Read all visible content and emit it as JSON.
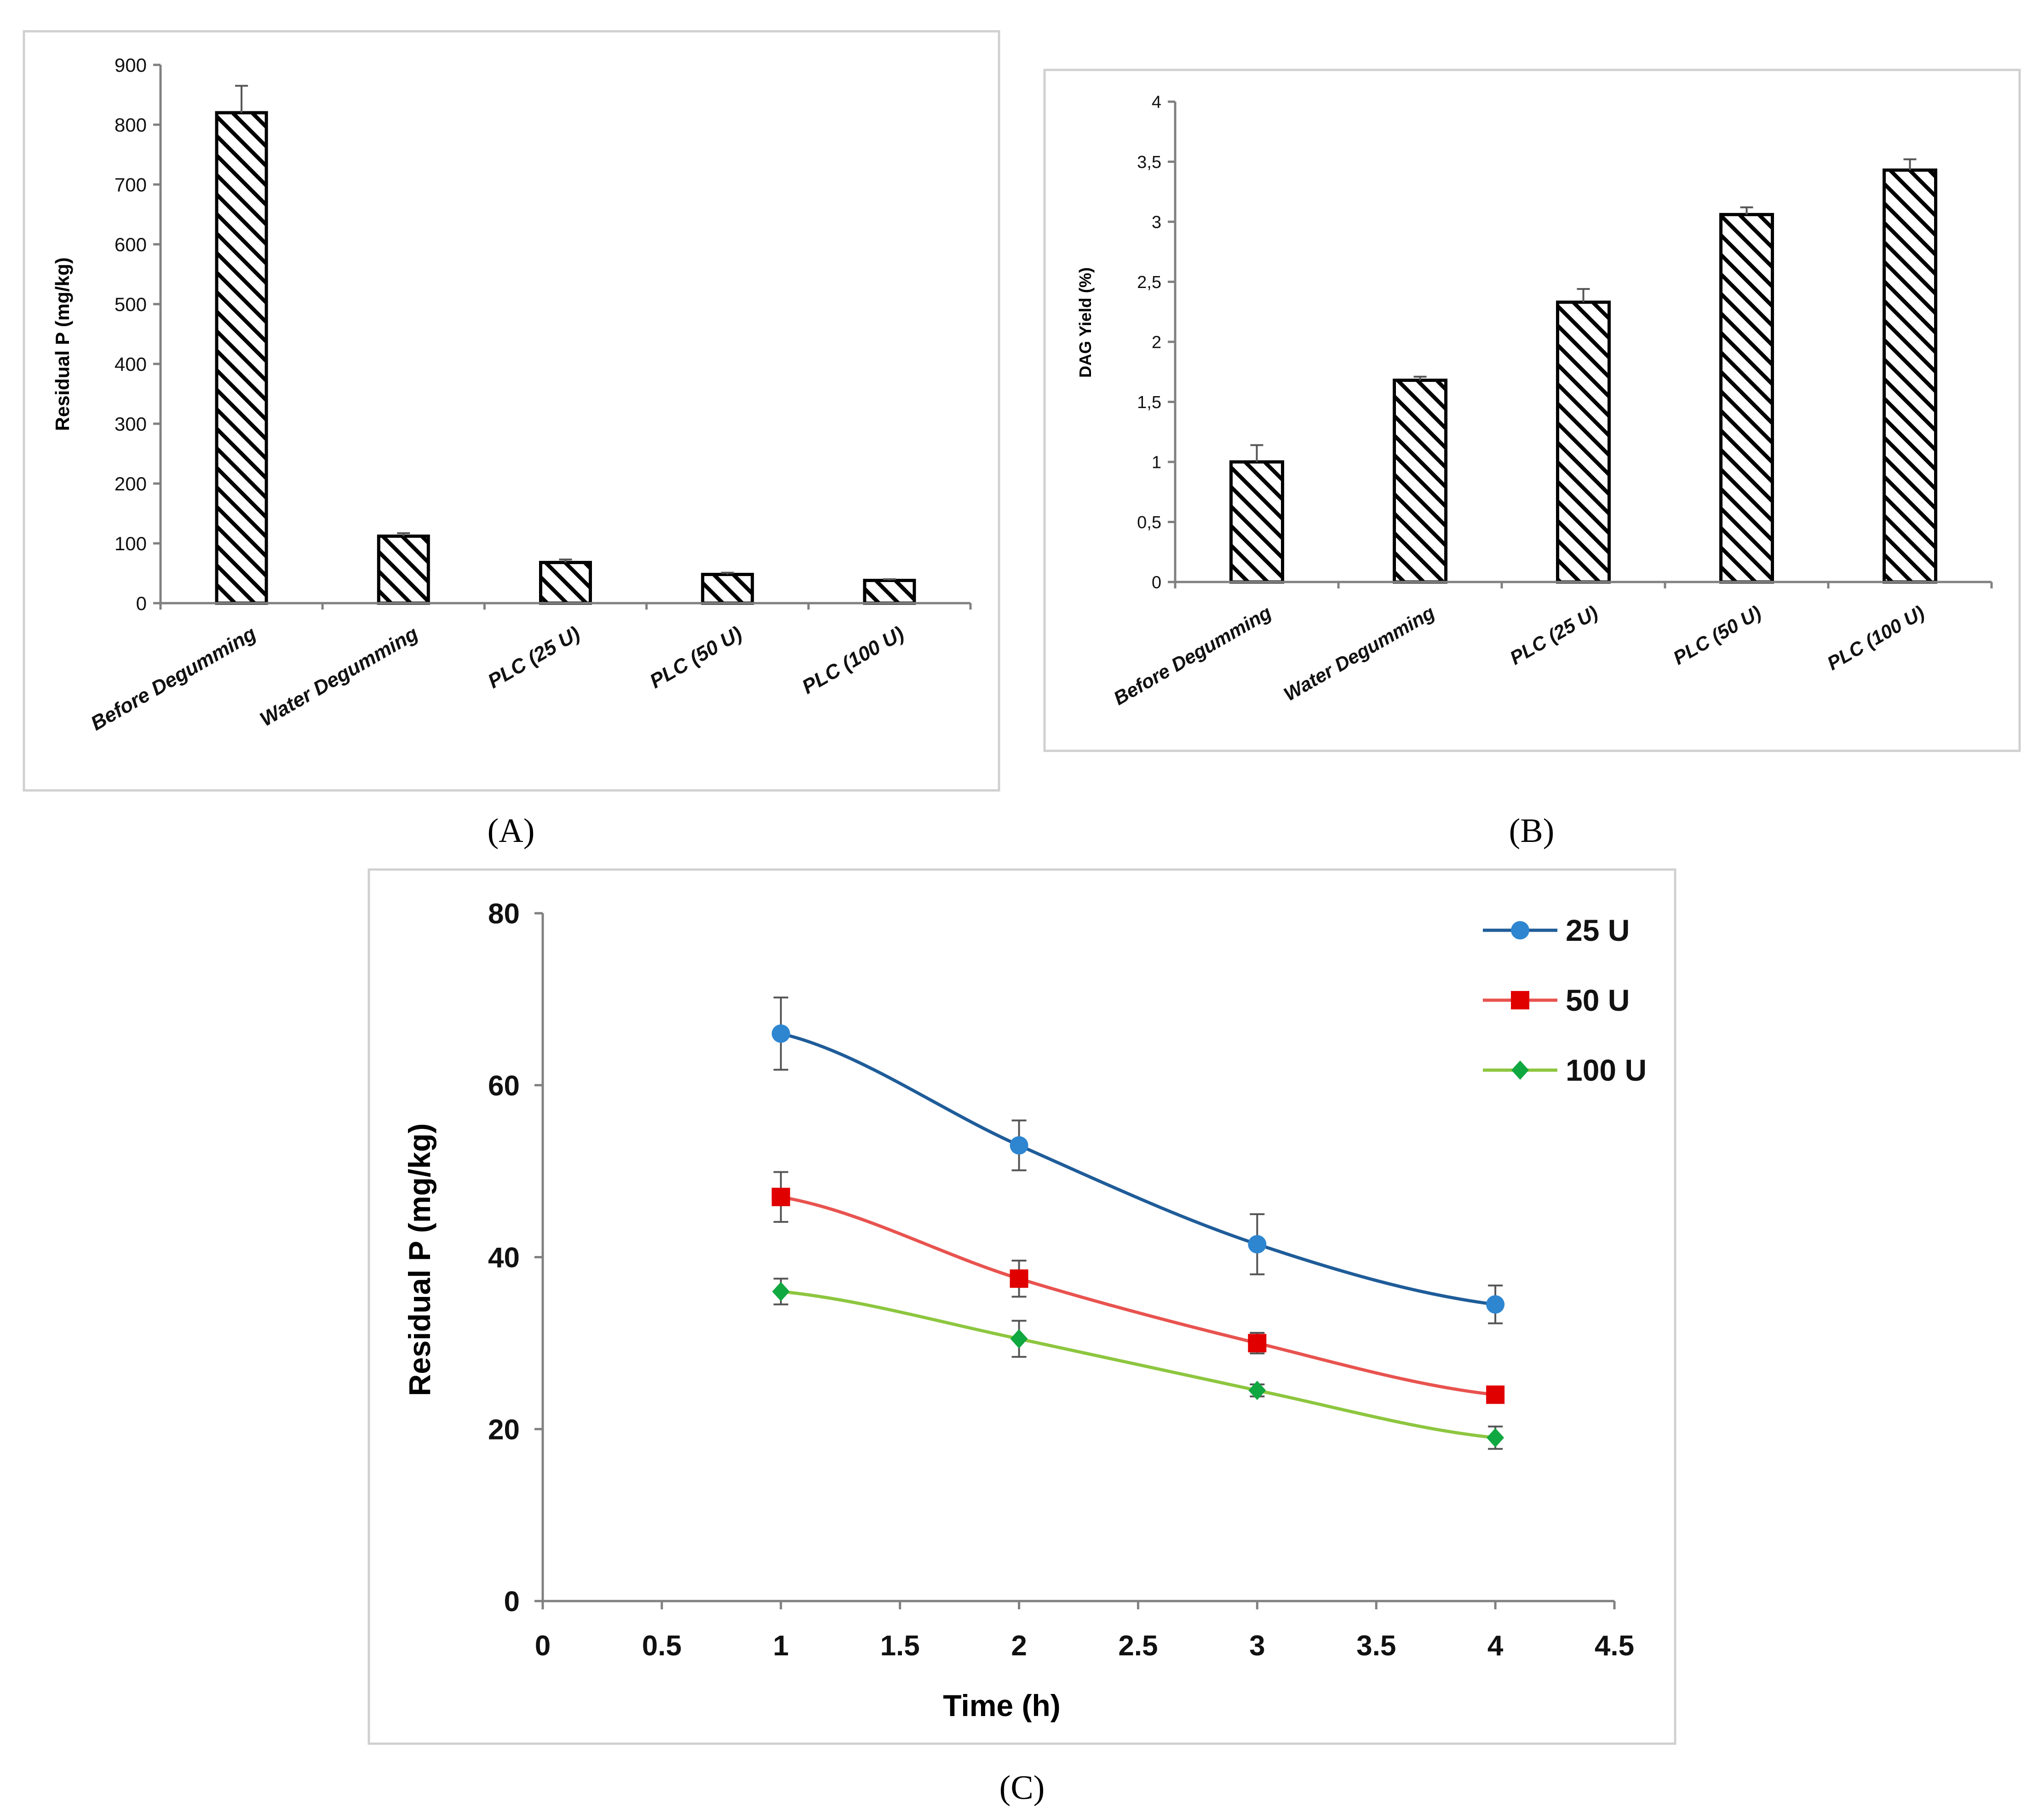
{
  "figure": {
    "labels": [
      "(A)",
      "(B)",
      "(C)"
    ]
  },
  "chart_data": [
    {
      "id": "A",
      "type": "bar",
      "title": "",
      "xlabel": "",
      "ylabel": "Residual P (mg/kg)",
      "categories": [
        "Before Degumming",
        "Water Degumming",
        "PLC (25 U)",
        "PLC (50 U)",
        "PLC (100 U)"
      ],
      "values": [
        820,
        112,
        68,
        48,
        38
      ],
      "errors": [
        45,
        5,
        5,
        3,
        2
      ],
      "ylim": [
        0,
        900
      ],
      "yticks": [
        0,
        100,
        200,
        300,
        400,
        500,
        600,
        700,
        800,
        900
      ],
      "ytick_labels": [
        "0",
        "100",
        "200",
        "300",
        "400",
        "500",
        "600",
        "700",
        "800",
        "900"
      ],
      "pattern": "diagonal-hatch"
    },
    {
      "id": "B",
      "type": "bar",
      "title": "",
      "xlabel": "",
      "ylabel": "DAG Yield (%)",
      "categories": [
        "Before Degumming",
        "Water Degumming",
        "PLC (25 U)",
        "PLC (50 U)",
        "PLC (100 U)"
      ],
      "values": [
        1.0,
        1.68,
        2.33,
        3.06,
        3.43
      ],
      "errors": [
        0.14,
        0.03,
        0.11,
        0.06,
        0.09
      ],
      "ylim": [
        0,
        4
      ],
      "yticks": [
        0,
        0.5,
        1,
        1.5,
        2,
        2.5,
        3,
        3.5,
        4
      ],
      "ytick_labels": [
        "0",
        "0,5",
        "1",
        "1,5",
        "2",
        "2,5",
        "3",
        "3,5",
        "4"
      ],
      "pattern": "diagonal-hatch"
    },
    {
      "id": "C",
      "type": "line",
      "title": "",
      "xlabel": "Time (h)",
      "ylabel": "Residual P (mg/kg)",
      "xlim": [
        0,
        4.5
      ],
      "ylim": [
        0,
        80
      ],
      "xticks": [
        0,
        0.5,
        1,
        1.5,
        2,
        2.5,
        3,
        3.5,
        4,
        4.5
      ],
      "xtick_labels": [
        "0",
        "0.5",
        "1",
        "1.5",
        "2",
        "2.5",
        "3",
        "3.5",
        "4",
        "4.5"
      ],
      "yticks": [
        0,
        20,
        40,
        60,
        80
      ],
      "ytick_labels": [
        "0",
        "20",
        "40",
        "60",
        "80"
      ],
      "legend": "top-right",
      "series": [
        {
          "name": "25 U",
          "color": "#1F5C99",
          "marker_color": "#2E86D1",
          "marker": "circle",
          "x": [
            1,
            2,
            3,
            4
          ],
          "values": [
            66,
            53,
            41.5,
            34.5
          ],
          "errors": [
            4.2,
            2.9,
            3.5,
            2.2
          ]
        },
        {
          "name": "50 U",
          "color": "#E8534F",
          "marker_color": "#E00000",
          "marker": "square",
          "x": [
            1,
            2,
            3,
            4
          ],
          "values": [
            47,
            37.5,
            30,
            24
          ],
          "errors": [
            2.9,
            2.1,
            1.2,
            0.8
          ]
        },
        {
          "name": "100 U",
          "color": "#8DC63F",
          "marker_color": "#10A840",
          "marker": "diamond",
          "x": [
            1,
            2,
            3,
            4
          ],
          "values": [
            36,
            30.5,
            24.5,
            19
          ],
          "errors": [
            1.5,
            2.1,
            0.7,
            1.3
          ]
        }
      ]
    }
  ]
}
